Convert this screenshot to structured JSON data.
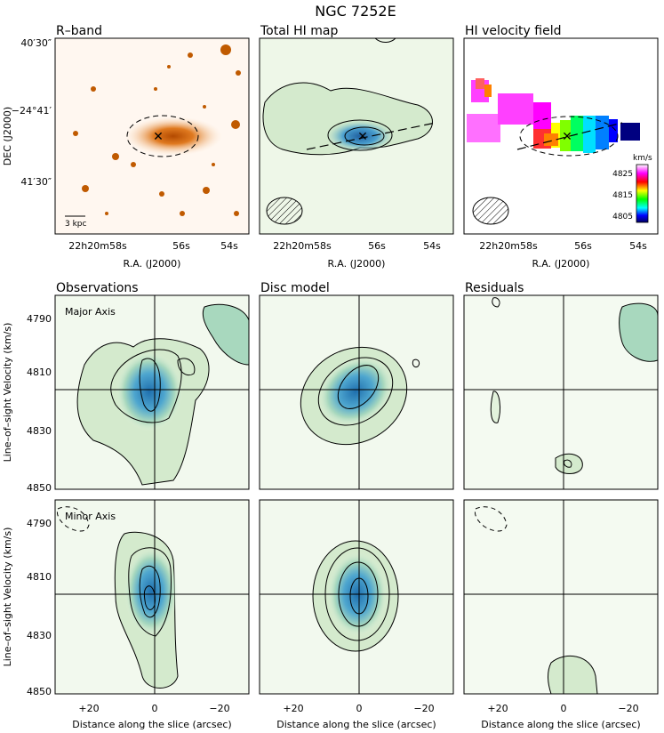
{
  "figure": {
    "title": "NGC 7252E",
    "top_panels": {
      "titles": [
        "R–band",
        "Total HI map",
        "HI velocity field"
      ],
      "y_ticks": [
        "40′30″",
        "−24°41′",
        "41′30″"
      ],
      "y_label": "DEC (J2000)",
      "x_label": "R.A. (J2000)",
      "x_tick_main": "22h20m58s",
      "x_tick_56": "56s",
      "x_tick_54": "54s",
      "scalebar_label": "3 kpc",
      "colorbar": {
        "unit": "km/s",
        "ticks": [
          "4825",
          "4815",
          "4805"
        ]
      }
    },
    "pv_panels": {
      "column_titles": [
        "Observations",
        "Disc model",
        "Residuals"
      ],
      "row_labels": [
        "Major Axis",
        "Minor Axis"
      ],
      "y_label": "Line–of–sight Velocity (km/s)",
      "y_ticks": [
        "4790",
        "4810",
        "4830",
        "4850"
      ],
      "x_ticks": [
        "+20",
        "0",
        "−20"
      ],
      "x_label": "Distance along the slice (arcsec)"
    }
  },
  "colors": {
    "pv_fill_light": "#e2f2dc",
    "pv_fill_mid": "#a8d8be",
    "pv_fill_dark": "#3b8ec8",
    "rband_orange": "#e07a20"
  }
}
